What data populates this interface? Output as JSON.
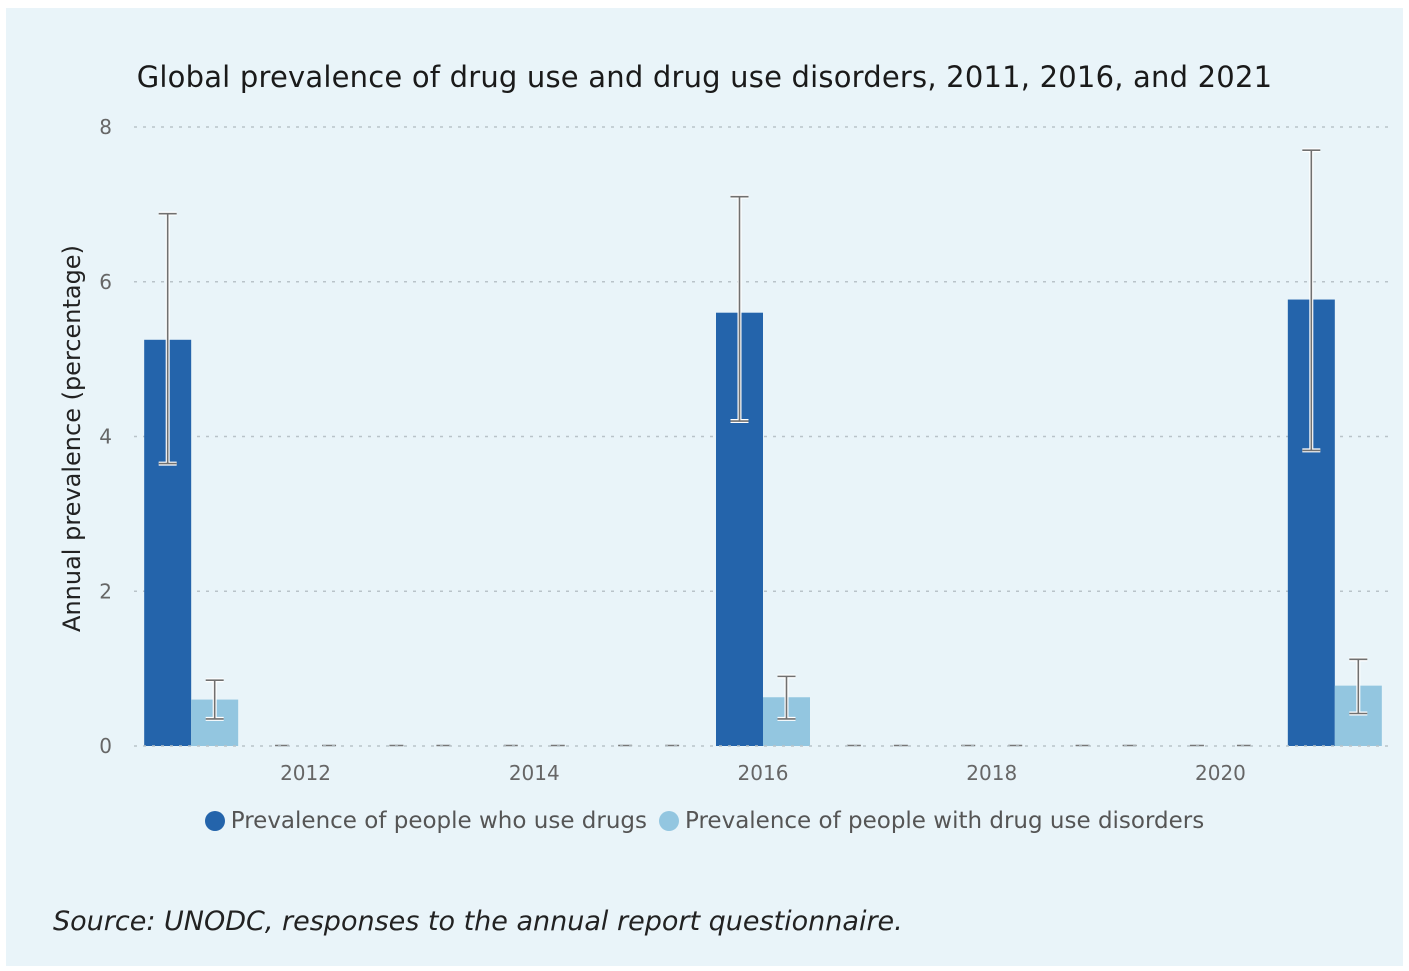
{
  "chart_data": {
    "type": "bar",
    "title": "Global prevalence of drug use and drug use disorders, 2011, 2016, and 2021",
    "xlabel": "",
    "ylabel": "Annual prevalence (percentage)",
    "ylim": [
      0,
      8
    ],
    "yticks": [
      "0",
      "2",
      "4",
      "6",
      "8"
    ],
    "xlim": [
      2010.5,
      2021.5
    ],
    "xticks": [
      "2012",
      "2014",
      "2016",
      "2018",
      "2020"
    ],
    "grid": true,
    "legend_position": "bottom",
    "categories": [
      "2011",
      "2016",
      "2021"
    ],
    "x": [
      2011,
      2016,
      2021
    ],
    "empty_years": [
      2012,
      2013,
      2014,
      2015,
      2017,
      2018,
      2019,
      2020
    ],
    "series": [
      {
        "name": "Prevalence of people who use drugs",
        "color": "#2464ab",
        "values": [
          5.25,
          5.6,
          5.77
        ],
        "error_low": [
          3.65,
          4.2,
          3.82
        ],
        "error_high": [
          6.88,
          7.1,
          7.7
        ]
      },
      {
        "name": "Prevalence of people with drug use disorders",
        "color": "#93c6e0",
        "values": [
          0.6,
          0.63,
          0.78
        ],
        "error_low": [
          0.35,
          0.35,
          0.42
        ],
        "error_high": [
          0.85,
          0.9,
          1.12
        ]
      }
    ],
    "source": "Source: UNODC, responses to the annual report questionnaire."
  }
}
